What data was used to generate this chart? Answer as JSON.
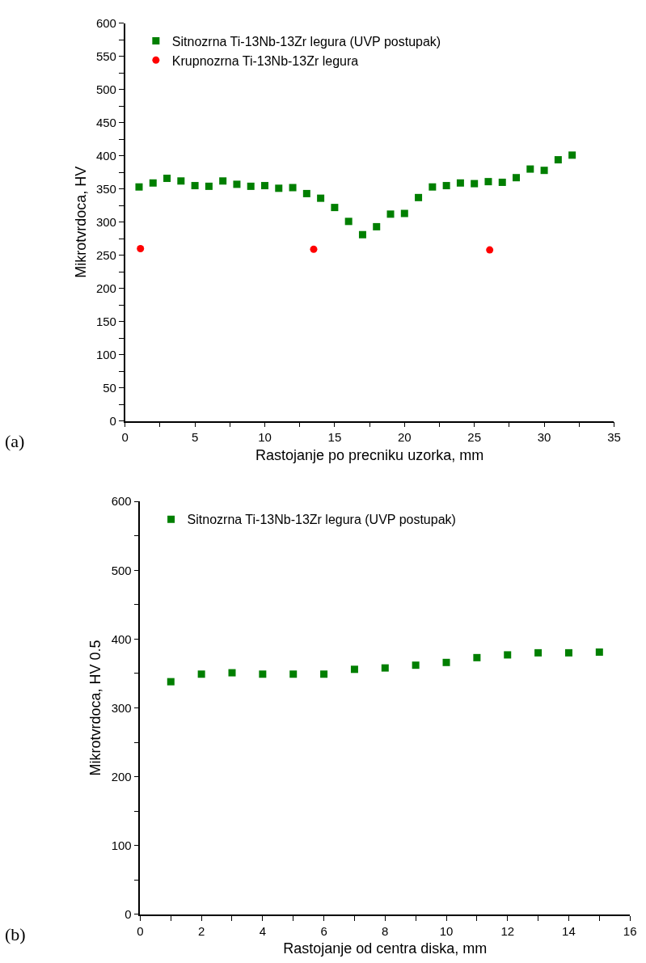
{
  "chart_data": [
    {
      "type": "scatter",
      "xlabel": "Rastojanje po precniku uzorka, mm",
      "ylabel": "Mikrotvrdoca, HV",
      "annotations": [
        "(a)"
      ],
      "legend": "top left",
      "xlim": [
        0,
        35
      ],
      "ylim": [
        0,
        600
      ],
      "xticks": [
        0,
        {
          "value": 2.5,
          "label": null
        },
        5,
        {
          "value": 7.5,
          "label": null
        },
        10,
        {
          "value": 12.5,
          "label": null
        },
        15,
        {
          "value": 17.5,
          "label": null
        },
        20,
        {
          "value": 22.5,
          "label": null
        },
        25,
        {
          "value": 27.5,
          "label": null
        },
        30,
        {
          "value": 32.5,
          "label": null
        },
        35
      ],
      "yticks": [
        0,
        {
          "value": 25,
          "label": null
        },
        50,
        {
          "value": 75,
          "label": null
        },
        100,
        {
          "value": 125,
          "label": null
        },
        150,
        {
          "value": 175,
          "label": null
        },
        200,
        {
          "value": 225,
          "label": null
        },
        250,
        {
          "value": 275,
          "label": null
        },
        300,
        {
          "value": 325,
          "label": null
        },
        350,
        {
          "value": 375,
          "label": null
        },
        400,
        {
          "value": 425,
          "label": null
        },
        450,
        {
          "value": 475,
          "label": null
        },
        500,
        {
          "value": 525,
          "label": null
        },
        550,
        {
          "value": 575,
          "label": null
        },
        600
      ],
      "series": [
        {
          "name": "Sitnozrna Ti-13Nb-13Zr legura (UVP postupak)",
          "color": "#007f00",
          "marker": "square",
          "x": [
            1,
            2,
            3,
            4,
            5,
            6,
            7,
            8,
            9,
            10,
            11,
            12,
            13,
            14,
            15,
            16,
            17,
            18,
            19,
            20,
            21,
            22,
            23,
            24,
            25,
            26,
            27,
            28,
            29,
            30,
            31,
            32
          ],
          "values": [
            353,
            359,
            366,
            362,
            355,
            354,
            362,
            357,
            354,
            355,
            351,
            352,
            343,
            336,
            322,
            301,
            281,
            293,
            312,
            313,
            337,
            353,
            355,
            359,
            358,
            361,
            360,
            367,
            380,
            378,
            394,
            401
          ]
        },
        {
          "name": "Krupnozrna Ti-13Nb-13Zr legura",
          "color": "#ff0000",
          "marker": "circle",
          "x": [
            1.1,
            13.5,
            26.1
          ],
          "values": [
            260,
            259,
            258
          ]
        }
      ]
    },
    {
      "type": "scatter",
      "xlabel": "Rastojanje od centra diska, mm",
      "ylabel": "Mikrotvrdoca, HV 0.5",
      "annotations": [
        "(b)"
      ],
      "legend": "top left",
      "xlim": [
        0,
        16
      ],
      "ylim": [
        0,
        600
      ],
      "xticks": [
        0,
        {
          "value": 1,
          "label": null
        },
        2,
        {
          "value": 3,
          "label": null
        },
        4,
        {
          "value": 5,
          "label": null
        },
        6,
        {
          "value": 7,
          "label": null
        },
        8,
        {
          "value": 9,
          "label": null
        },
        10,
        {
          "value": 11,
          "label": null
        },
        12,
        {
          "value": 13,
          "label": null
        },
        14,
        {
          "value": 15,
          "label": null
        },
        16
      ],
      "yticks": [
        0,
        {
          "value": 50,
          "label": null
        },
        100,
        {
          "value": 150,
          "label": null
        },
        200,
        {
          "value": 250,
          "label": null
        },
        300,
        {
          "value": 350,
          "label": null
        },
        400,
        {
          "value": 450,
          "label": null
        },
        500,
        {
          "value": 550,
          "label": null
        },
        600
      ],
      "series": [
        {
          "name": "Sitnozrna Ti-13Nb-13Zr legura (UVP postupak)",
          "color": "#007f00",
          "marker": "square",
          "x": [
            1,
            2,
            3,
            4,
            5,
            6,
            7,
            8,
            9,
            10,
            11,
            12,
            13,
            14,
            15
          ],
          "values": [
            338,
            349,
            351,
            349,
            349,
            349,
            356,
            358,
            362,
            366,
            373,
            377,
            380,
            380,
            381
          ]
        }
      ]
    }
  ]
}
